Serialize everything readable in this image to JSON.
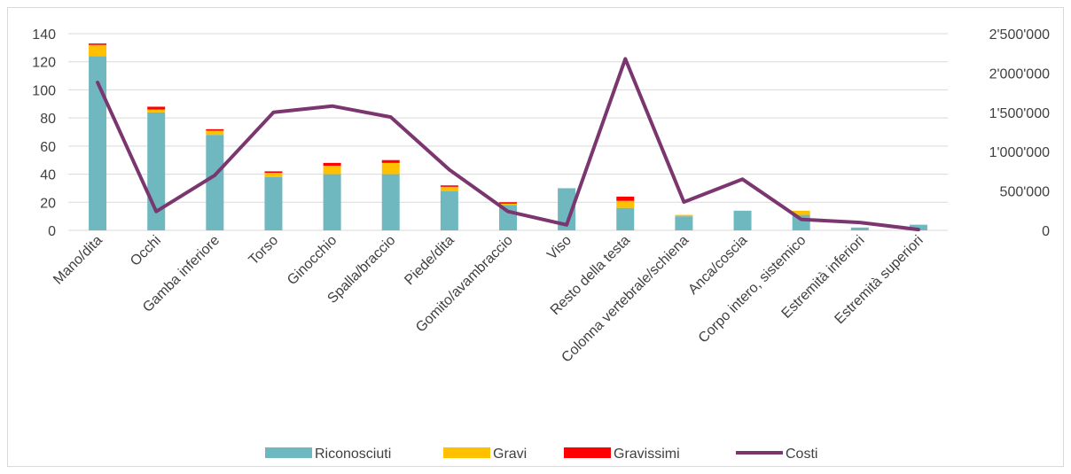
{
  "chart_data": {
    "type": "bar",
    "stacked": true,
    "categories": [
      "Mano/dita",
      "Occhi",
      "Gamba inferiore",
      "Torso",
      "Ginocchio",
      "Spalla/braccio",
      "Piede/dita",
      "Gomito/avambraccio",
      "Viso",
      "Resto della testa",
      "Colonna vertebrale/schiena",
      "Anca/coscia",
      "Corpo intero, sistemico",
      "Estremità inferiori",
      "Estremità superiori"
    ],
    "series": [
      {
        "name": "Riconosciuti",
        "type": "bar",
        "axis": "left",
        "color": "#70b8bf",
        "values": [
          124,
          84,
          68,
          38,
          40,
          40,
          28,
          18,
          30,
          16,
          10,
          14,
          11,
          2,
          4
        ]
      },
      {
        "name": "Gravi",
        "type": "bar",
        "axis": "left",
        "color": "#ffc000",
        "values": [
          8,
          2,
          3,
          3,
          6,
          8,
          3,
          1,
          0,
          5,
          1,
          0,
          3,
          0,
          0
        ]
      },
      {
        "name": "Gravissimi",
        "type": "bar",
        "axis": "left",
        "color": "#ff0000",
        "values": [
          1,
          2,
          1,
          1,
          2,
          2,
          1,
          1,
          0,
          3,
          0,
          0,
          0,
          0,
          0
        ]
      },
      {
        "name": "Costi",
        "type": "line",
        "axis": "right",
        "color": "#7b3670",
        "values": [
          1880000,
          240000,
          700000,
          1500000,
          1580000,
          1440000,
          770000,
          240000,
          70000,
          2180000,
          360000,
          650000,
          140000,
          100000,
          10000
        ]
      }
    ],
    "y_left": {
      "min": 0,
      "max": 140,
      "ticks": [
        "0",
        "20",
        "40",
        "60",
        "80",
        "100",
        "120",
        "140"
      ]
    },
    "y_right": {
      "min": 0,
      "max": 2500000,
      "ticks": [
        "0",
        "500'000",
        "1'000'000",
        "1'500'000",
        "2'000'000",
        "2'500'000"
      ]
    },
    "grid": true,
    "legend_position": "bottom"
  }
}
